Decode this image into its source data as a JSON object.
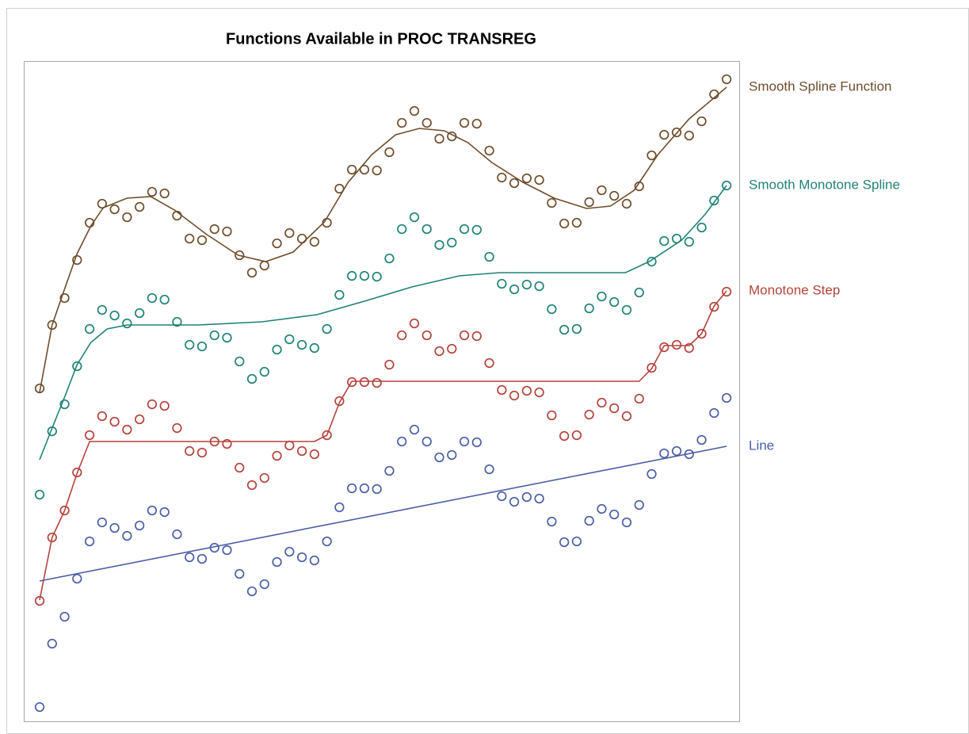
{
  "chart_data": {
    "type": "scatter",
    "title": "Functions Available in PROC TRANSREG",
    "xlim": [
      -1.27,
      56.01
    ],
    "ylim": [
      0,
      83.3
    ],
    "x": [
      0,
      1,
      2,
      3,
      4,
      5,
      6,
      7,
      8,
      9,
      10,
      11,
      12,
      13,
      14,
      15,
      16,
      17,
      18,
      19,
      20,
      21,
      22,
      23,
      24,
      25,
      26,
      27,
      28,
      29,
      30,
      31,
      32,
      33,
      34,
      35,
      36,
      37,
      38,
      39,
      40,
      41,
      42,
      43,
      44,
      45,
      46,
      47,
      48,
      49,
      50,
      51,
      52,
      53,
      54,
      55
    ],
    "series": [
      {
        "name": "Smooth Spline Function",
        "color": "#6e4d2b",
        "values": [
          42.0,
          50.0,
          53.4,
          58.2,
          62.9,
          65.3,
          64.6,
          63.6,
          64.9,
          66.8,
          66.6,
          63.8,
          60.9,
          60.7,
          62.1,
          61.8,
          58.8,
          56.6,
          57.5,
          60.3,
          61.6,
          60.9,
          60.5,
          62.9,
          67.2,
          69.6,
          69.6,
          69.5,
          71.8,
          75.5,
          77.0,
          75.5,
          73.5,
          73.8,
          75.5,
          75.4,
          72.0,
          68.6,
          67.9,
          68.5,
          68.3,
          65.4,
          62.8,
          62.9,
          65.5,
          67.0,
          66.3,
          65.3,
          67.5,
          71.4,
          74.0,
          74.3,
          73.9,
          75.7,
          79.1,
          81.0
        ],
        "fit_x": [
          0,
          1.0,
          2.1,
          3.0,
          4.1,
          5.1,
          7.0,
          8.9,
          10.8,
          13.3,
          15.9,
          18.1,
          20.3,
          22.8,
          24.7,
          26.6,
          28.5,
          30.4,
          32.4,
          34.3,
          36.2,
          38.7,
          41.2,
          43.8,
          45.7,
          47.6,
          49.5,
          52.0,
          55.0
        ],
        "fit_values": [
          41.5,
          50.0,
          55.0,
          59.0,
          62.5,
          64.8,
          66.0,
          66.2,
          64.5,
          61.5,
          58.8,
          58.0,
          59.2,
          63.0,
          68.0,
          71.5,
          74.0,
          74.8,
          74.5,
          73.0,
          70.5,
          68.0,
          66.0,
          64.7,
          65.0,
          67.0,
          71.5,
          76.0,
          80.0
        ]
      },
      {
        "name": "Smooth Monotone Spline",
        "color": "#1f8276",
        "values": [
          28.6,
          36.6,
          40.0,
          44.8,
          49.5,
          51.9,
          51.2,
          50.2,
          51.5,
          53.4,
          53.2,
          50.4,
          47.5,
          47.3,
          48.7,
          48.4,
          45.4,
          43.2,
          44.1,
          46.9,
          48.2,
          47.5,
          47.1,
          49.5,
          53.8,
          56.2,
          56.2,
          56.1,
          58.4,
          62.1,
          63.6,
          62.1,
          60.1,
          60.4,
          62.1,
          62.0,
          58.6,
          55.2,
          54.5,
          55.1,
          54.9,
          52.0,
          49.4,
          49.5,
          52.1,
          53.6,
          52.9,
          51.9,
          54.1,
          58.0,
          60.6,
          60.9,
          60.5,
          62.3,
          65.7,
          67.6
        ],
        "fit_x": [
          0,
          1.0,
          2.1,
          3.0,
          4.1,
          5.4,
          7.0,
          12.7,
          17.8,
          22.2,
          26.0,
          29.8,
          33.6,
          36.8,
          46.9,
          48.8,
          51.4,
          53.3,
          55.0
        ],
        "fit_values": [
          33.0,
          37.0,
          41.3,
          45.0,
          47.8,
          49.5,
          50.0,
          50.0,
          50.4,
          51.3,
          53.0,
          54.8,
          56.2,
          56.6,
          56.6,
          58.0,
          60.7,
          64.0,
          67.6
        ]
      },
      {
        "name": "Monotone Step",
        "color": "#b3433b",
        "values": [
          15.2,
          23.2,
          26.6,
          31.4,
          36.1,
          38.5,
          37.8,
          36.8,
          38.1,
          40.0,
          39.8,
          37.0,
          34.1,
          33.9,
          35.3,
          35.0,
          32.0,
          29.8,
          30.7,
          33.5,
          34.8,
          34.1,
          33.7,
          36.1,
          40.4,
          42.8,
          42.8,
          42.7,
          45.0,
          48.7,
          50.2,
          48.7,
          46.7,
          47.0,
          48.7,
          48.6,
          45.2,
          41.8,
          41.1,
          41.7,
          41.5,
          38.6,
          36.0,
          36.1,
          38.7,
          40.2,
          39.5,
          38.5,
          40.7,
          44.6,
          47.2,
          47.5,
          47.1,
          48.9,
          52.3,
          54.2
        ],
        "fit_x": [
          0,
          1,
          2,
          3,
          4,
          22,
          23,
          24,
          25,
          48,
          49,
          50,
          52,
          53,
          54,
          55
        ],
        "fit_values": [
          15.3,
          23.2,
          26.6,
          31.3,
          35.3,
          35.3,
          36.1,
          40.2,
          42.9,
          42.9,
          44.5,
          47.4,
          47.4,
          48.9,
          52.4,
          54.3
        ]
      },
      {
        "name": "Line",
        "color": "#4c5ea6",
        "values": [
          1.8,
          9.8,
          13.2,
          18.0,
          22.7,
          25.1,
          24.4,
          23.4,
          24.7,
          26.6,
          26.4,
          23.6,
          20.7,
          20.5,
          21.9,
          21.6,
          18.6,
          16.4,
          17.3,
          20.1,
          21.4,
          20.7,
          20.3,
          22.7,
          27.0,
          29.4,
          29.4,
          29.3,
          31.6,
          35.3,
          36.8,
          35.3,
          33.3,
          33.6,
          35.3,
          35.2,
          31.8,
          28.4,
          27.7,
          28.3,
          28.1,
          25.2,
          22.6,
          22.7,
          25.3,
          26.8,
          26.1,
          25.1,
          27.3,
          31.2,
          33.8,
          34.1,
          33.7,
          35.5,
          38.9,
          40.8
        ],
        "fit_x": [
          0,
          55
        ],
        "fit_values": [
          17.7,
          34.7
        ]
      }
    ]
  }
}
